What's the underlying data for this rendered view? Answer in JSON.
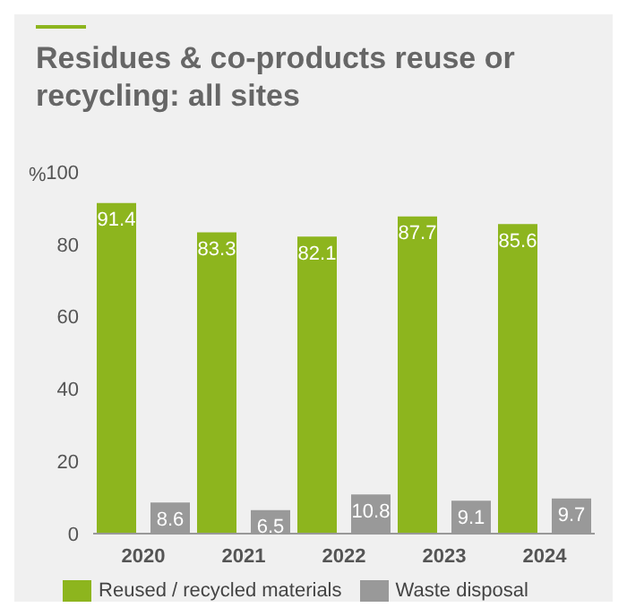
{
  "chart_data": {
    "type": "bar",
    "title": "Residues & co-products reuse or recycling: all sites",
    "ylabel": "%",
    "categories": [
      "2020",
      "2021",
      "2022",
      "2023",
      "2024"
    ],
    "series": [
      {
        "name": "Reused / recycled materials",
        "color": "#8db51e",
        "values": [
          91.4,
          83.3,
          82.1,
          87.7,
          85.6
        ]
      },
      {
        "name": "Waste disposal",
        "color": "#999999",
        "values": [
          8.6,
          6.5,
          10.8,
          9.1,
          9.7
        ]
      }
    ],
    "ylim": [
      0,
      100
    ],
    "yticks": [
      0,
      20,
      40,
      60,
      80,
      100
    ],
    "data_labels": true,
    "legend": "bottom",
    "grid": false
  }
}
